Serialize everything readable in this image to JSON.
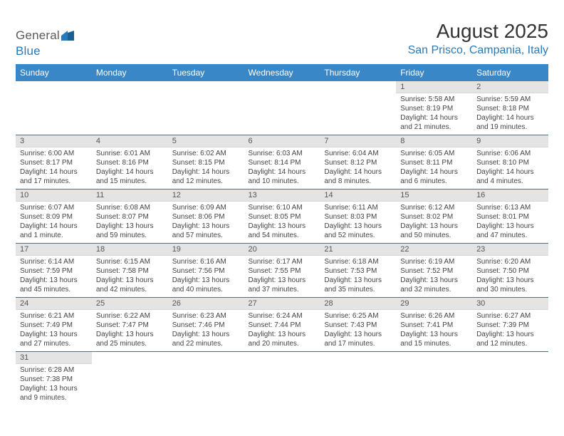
{
  "logo": {
    "gray": "General",
    "blue": "Blue"
  },
  "title": "August 2025",
  "location": "San Prisco, Campania, Italy",
  "colors": {
    "header_bg": "#3a87c7",
    "accent": "#2a7ab9",
    "daynum_bg": "#e4e4e4",
    "row_border": "#2a7ab9"
  },
  "weekdays": [
    "Sunday",
    "Monday",
    "Tuesday",
    "Wednesday",
    "Thursday",
    "Friday",
    "Saturday"
  ],
  "weeks": [
    [
      null,
      null,
      null,
      null,
      null,
      {
        "day": "1",
        "sunrise": "Sunrise: 5:58 AM",
        "sunset": "Sunset: 8:19 PM",
        "daylight1": "Daylight: 14 hours",
        "daylight2": "and 21 minutes."
      },
      {
        "day": "2",
        "sunrise": "Sunrise: 5:59 AM",
        "sunset": "Sunset: 8:18 PM",
        "daylight1": "Daylight: 14 hours",
        "daylight2": "and 19 minutes."
      }
    ],
    [
      {
        "day": "3",
        "sunrise": "Sunrise: 6:00 AM",
        "sunset": "Sunset: 8:17 PM",
        "daylight1": "Daylight: 14 hours",
        "daylight2": "and 17 minutes."
      },
      {
        "day": "4",
        "sunrise": "Sunrise: 6:01 AM",
        "sunset": "Sunset: 8:16 PM",
        "daylight1": "Daylight: 14 hours",
        "daylight2": "and 15 minutes."
      },
      {
        "day": "5",
        "sunrise": "Sunrise: 6:02 AM",
        "sunset": "Sunset: 8:15 PM",
        "daylight1": "Daylight: 14 hours",
        "daylight2": "and 12 minutes."
      },
      {
        "day": "6",
        "sunrise": "Sunrise: 6:03 AM",
        "sunset": "Sunset: 8:14 PM",
        "daylight1": "Daylight: 14 hours",
        "daylight2": "and 10 minutes."
      },
      {
        "day": "7",
        "sunrise": "Sunrise: 6:04 AM",
        "sunset": "Sunset: 8:12 PM",
        "daylight1": "Daylight: 14 hours",
        "daylight2": "and 8 minutes."
      },
      {
        "day": "8",
        "sunrise": "Sunrise: 6:05 AM",
        "sunset": "Sunset: 8:11 PM",
        "daylight1": "Daylight: 14 hours",
        "daylight2": "and 6 minutes."
      },
      {
        "day": "9",
        "sunrise": "Sunrise: 6:06 AM",
        "sunset": "Sunset: 8:10 PM",
        "daylight1": "Daylight: 14 hours",
        "daylight2": "and 4 minutes."
      }
    ],
    [
      {
        "day": "10",
        "sunrise": "Sunrise: 6:07 AM",
        "sunset": "Sunset: 8:09 PM",
        "daylight1": "Daylight: 14 hours",
        "daylight2": "and 1 minute."
      },
      {
        "day": "11",
        "sunrise": "Sunrise: 6:08 AM",
        "sunset": "Sunset: 8:07 PM",
        "daylight1": "Daylight: 13 hours",
        "daylight2": "and 59 minutes."
      },
      {
        "day": "12",
        "sunrise": "Sunrise: 6:09 AM",
        "sunset": "Sunset: 8:06 PM",
        "daylight1": "Daylight: 13 hours",
        "daylight2": "and 57 minutes."
      },
      {
        "day": "13",
        "sunrise": "Sunrise: 6:10 AM",
        "sunset": "Sunset: 8:05 PM",
        "daylight1": "Daylight: 13 hours",
        "daylight2": "and 54 minutes."
      },
      {
        "day": "14",
        "sunrise": "Sunrise: 6:11 AM",
        "sunset": "Sunset: 8:03 PM",
        "daylight1": "Daylight: 13 hours",
        "daylight2": "and 52 minutes."
      },
      {
        "day": "15",
        "sunrise": "Sunrise: 6:12 AM",
        "sunset": "Sunset: 8:02 PM",
        "daylight1": "Daylight: 13 hours",
        "daylight2": "and 50 minutes."
      },
      {
        "day": "16",
        "sunrise": "Sunrise: 6:13 AM",
        "sunset": "Sunset: 8:01 PM",
        "daylight1": "Daylight: 13 hours",
        "daylight2": "and 47 minutes."
      }
    ],
    [
      {
        "day": "17",
        "sunrise": "Sunrise: 6:14 AM",
        "sunset": "Sunset: 7:59 PM",
        "daylight1": "Daylight: 13 hours",
        "daylight2": "and 45 minutes."
      },
      {
        "day": "18",
        "sunrise": "Sunrise: 6:15 AM",
        "sunset": "Sunset: 7:58 PM",
        "daylight1": "Daylight: 13 hours",
        "daylight2": "and 42 minutes."
      },
      {
        "day": "19",
        "sunrise": "Sunrise: 6:16 AM",
        "sunset": "Sunset: 7:56 PM",
        "daylight1": "Daylight: 13 hours",
        "daylight2": "and 40 minutes."
      },
      {
        "day": "20",
        "sunrise": "Sunrise: 6:17 AM",
        "sunset": "Sunset: 7:55 PM",
        "daylight1": "Daylight: 13 hours",
        "daylight2": "and 37 minutes."
      },
      {
        "day": "21",
        "sunrise": "Sunrise: 6:18 AM",
        "sunset": "Sunset: 7:53 PM",
        "daylight1": "Daylight: 13 hours",
        "daylight2": "and 35 minutes."
      },
      {
        "day": "22",
        "sunrise": "Sunrise: 6:19 AM",
        "sunset": "Sunset: 7:52 PM",
        "daylight1": "Daylight: 13 hours",
        "daylight2": "and 32 minutes."
      },
      {
        "day": "23",
        "sunrise": "Sunrise: 6:20 AM",
        "sunset": "Sunset: 7:50 PM",
        "daylight1": "Daylight: 13 hours",
        "daylight2": "and 30 minutes."
      }
    ],
    [
      {
        "day": "24",
        "sunrise": "Sunrise: 6:21 AM",
        "sunset": "Sunset: 7:49 PM",
        "daylight1": "Daylight: 13 hours",
        "daylight2": "and 27 minutes."
      },
      {
        "day": "25",
        "sunrise": "Sunrise: 6:22 AM",
        "sunset": "Sunset: 7:47 PM",
        "daylight1": "Daylight: 13 hours",
        "daylight2": "and 25 minutes."
      },
      {
        "day": "26",
        "sunrise": "Sunrise: 6:23 AM",
        "sunset": "Sunset: 7:46 PM",
        "daylight1": "Daylight: 13 hours",
        "daylight2": "and 22 minutes."
      },
      {
        "day": "27",
        "sunrise": "Sunrise: 6:24 AM",
        "sunset": "Sunset: 7:44 PM",
        "daylight1": "Daylight: 13 hours",
        "daylight2": "and 20 minutes."
      },
      {
        "day": "28",
        "sunrise": "Sunrise: 6:25 AM",
        "sunset": "Sunset: 7:43 PM",
        "daylight1": "Daylight: 13 hours",
        "daylight2": "and 17 minutes."
      },
      {
        "day": "29",
        "sunrise": "Sunrise: 6:26 AM",
        "sunset": "Sunset: 7:41 PM",
        "daylight1": "Daylight: 13 hours",
        "daylight2": "and 15 minutes."
      },
      {
        "day": "30",
        "sunrise": "Sunrise: 6:27 AM",
        "sunset": "Sunset: 7:39 PM",
        "daylight1": "Daylight: 13 hours",
        "daylight2": "and 12 minutes."
      }
    ],
    [
      {
        "day": "31",
        "sunrise": "Sunrise: 6:28 AM",
        "sunset": "Sunset: 7:38 PM",
        "daylight1": "Daylight: 13 hours",
        "daylight2": "and 9 minutes."
      },
      null,
      null,
      null,
      null,
      null,
      null
    ]
  ]
}
